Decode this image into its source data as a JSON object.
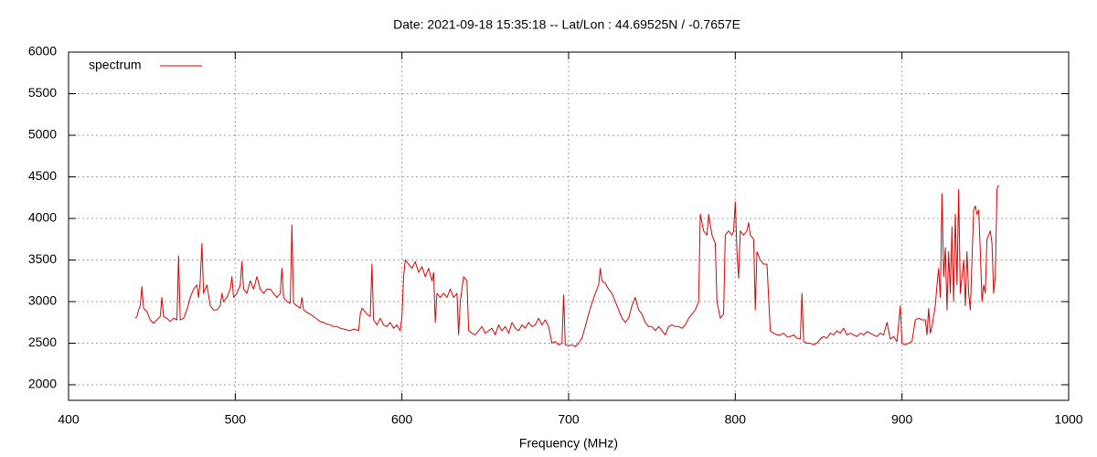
{
  "chart_data": {
    "type": "line",
    "title": "Date: 2021-09-18 15:35:18  --  Lat/Lon : 44.69525N / -0.7657E",
    "xlabel": "Frequency (MHz)",
    "xlim": [
      400,
      1000
    ],
    "ylim": [
      1813,
      6000
    ],
    "xticks": [
      400,
      500,
      600,
      700,
      800,
      900,
      1000
    ],
    "yticks": [
      2000,
      2500,
      3000,
      3500,
      4000,
      4500,
      5000,
      5500,
      6000
    ],
    "grid": true,
    "legend": "upper left",
    "x": [
      440,
      441,
      442,
      443,
      444,
      445,
      447,
      449,
      451,
      453,
      455,
      456,
      457,
      459,
      461,
      463,
      465,
      466,
      467,
      469,
      471,
      473,
      475,
      477,
      478,
      479,
      480,
      481,
      483,
      485,
      487,
      489,
      491,
      492,
      493,
      495,
      497,
      498,
      499,
      501,
      503,
      504,
      505,
      507,
      509,
      511,
      513,
      515,
      517,
      519,
      521,
      523,
      525,
      527,
      528,
      529,
      531,
      533,
      534,
      535,
      537,
      539,
      540,
      541,
      543,
      545,
      547,
      549,
      551,
      553,
      555,
      557,
      559,
      561,
      563,
      565,
      567,
      569,
      571,
      573,
      574,
      575,
      576,
      577,
      579,
      581,
      582,
      583,
      585,
      587,
      589,
      591,
      593,
      595,
      597,
      599,
      600,
      601,
      602,
      604,
      606,
      608,
      610,
      612,
      614,
      616,
      618,
      619,
      620,
      621,
      623,
      625,
      627,
      629,
      631,
      633,
      634,
      635,
      637,
      639,
      640,
      642,
      644,
      646,
      648,
      650,
      652,
      654,
      656,
      658,
      660,
      662,
      664,
      666,
      668,
      670,
      672,
      674,
      676,
      678,
      680,
      682,
      684,
      686,
      688,
      690,
      692,
      694,
      696,
      697,
      698,
      700,
      702,
      704,
      706,
      708,
      710,
      712,
      714,
      716,
      718,
      719,
      720,
      722,
      724,
      726,
      728,
      730,
      732,
      734,
      736,
      738,
      740,
      742,
      744,
      746,
      748,
      750,
      752,
      754,
      756,
      758,
      760,
      762,
      764,
      766,
      768,
      770,
      772,
      774,
      776,
      778,
      779,
      781,
      783,
      784,
      786,
      788,
      789,
      791,
      793,
      794,
      796,
      798,
      799,
      800,
      801,
      802,
      803,
      805,
      807,
      808,
      809,
      811,
      812,
      813,
      815,
      817,
      819,
      820,
      821,
      823,
      825,
      827,
      829,
      831,
      833,
      835,
      837,
      839,
      840,
      841,
      843,
      845,
      847,
      849,
      851,
      853,
      855,
      857,
      859,
      861,
      863,
      865,
      867,
      869,
      871,
      873,
      875,
      877,
      879,
      881,
      883,
      885,
      887,
      889,
      891,
      893,
      895,
      897,
      899,
      900,
      902,
      904,
      906,
      908,
      910,
      912,
      914,
      915,
      916,
      917,
      918,
      920,
      921,
      922,
      923,
      924,
      925,
      926,
      927,
      928,
      929,
      930,
      931,
      932,
      933,
      934,
      935,
      936,
      937,
      938,
      939,
      940,
      941,
      942,
      943,
      944,
      945,
      946,
      947,
      948,
      949,
      950,
      951,
      952,
      953,
      954,
      955,
      956,
      957,
      958
    ],
    "series": [
      {
        "name": "spectrum",
        "color": "#e00000",
        "values": [
          2800,
          2820,
          2900,
          2950,
          3180,
          2920,
          2880,
          2780,
          2740,
          2780,
          2820,
          3050,
          2820,
          2800,
          2760,
          2800,
          2780,
          3550,
          2780,
          2800,
          2900,
          3050,
          3150,
          3200,
          3050,
          3250,
          3700,
          3100,
          3200,
          2950,
          2900,
          2900,
          2950,
          3100,
          3000,
          3050,
          3150,
          3300,
          3050,
          3100,
          3200,
          3480,
          3150,
          3100,
          3250,
          3150,
          3300,
          3150,
          3100,
          3150,
          3150,
          3100,
          3050,
          3100,
          3400,
          3050,
          3000,
          2980,
          3920,
          2980,
          2950,
          2920,
          3050,
          2900,
          2870,
          2850,
          2820,
          2790,
          2760,
          2750,
          2730,
          2720,
          2700,
          2700,
          2680,
          2670,
          2660,
          2650,
          2670,
          2660,
          2650,
          2850,
          2920,
          2900,
          2850,
          2820,
          3450,
          2780,
          2720,
          2800,
          2720,
          2700,
          2750,
          2680,
          2720,
          2650,
          2820,
          3300,
          3500,
          3450,
          3400,
          3480,
          3350,
          3420,
          3300,
          3400,
          3250,
          3350,
          2750,
          3100,
          3050,
          3100,
          3050,
          3150,
          3050,
          3100,
          2600,
          3000,
          3300,
          3250,
          2650,
          2620,
          2600,
          2650,
          2700,
          2620,
          2650,
          2680,
          2600,
          2720,
          2650,
          2700,
          2620,
          2750,
          2680,
          2650,
          2720,
          2680,
          2750,
          2700,
          2720,
          2800,
          2720,
          2780,
          2700,
          2500,
          2520,
          2480,
          2500,
          3080,
          2480,
          2470,
          2480,
          2460,
          2500,
          2560,
          2700,
          2850,
          2980,
          3100,
          3200,
          3400,
          3250,
          3220,
          3150,
          3100,
          3000,
          2900,
          2800,
          2750,
          2800,
          2950,
          3050,
          2900,
          2850,
          2750,
          2700,
          2700,
          2650,
          2700,
          2650,
          2600,
          2700,
          2720,
          2700,
          2700,
          2680,
          2720,
          2800,
          2850,
          2900,
          3000,
          4050,
          3850,
          3800,
          4050,
          3800,
          3700,
          3000,
          2800,
          2850,
          3800,
          3850,
          3800,
          3850,
          4200,
          3600,
          3280,
          3850,
          3800,
          3850,
          3950,
          3800,
          3750,
          2900,
          3600,
          3500,
          3450,
          3450,
          3050,
          2650,
          2620,
          2600,
          2600,
          2620,
          2580,
          2580,
          2600,
          2560,
          2550,
          3100,
          2520,
          2500,
          2500,
          2480,
          2500,
          2550,
          2580,
          2560,
          2620,
          2600,
          2650,
          2620,
          2680,
          2600,
          2620,
          2600,
          2580,
          2620,
          2600,
          2640,
          2620,
          2600,
          2580,
          2620,
          2600,
          2750,
          2550,
          2580,
          2520,
          2950,
          2500,
          2480,
          2500,
          2520,
          2780,
          2800,
          2780,
          2780,
          2600,
          2920,
          2620,
          2700,
          2950,
          3200,
          3400,
          3050,
          4300,
          3300,
          3650,
          2900,
          3600,
          3100,
          3900,
          3000,
          4050,
          3200,
          4350,
          3100,
          3300,
          3500,
          2950,
          3600,
          3100,
          2900,
          3500,
          4100,
          4150,
          4050,
          4100,
          3600,
          3000,
          3200,
          3100,
          3750,
          3800,
          3850,
          3700,
          3100,
          3300,
          4350,
          4400
        ]
      }
    ]
  }
}
